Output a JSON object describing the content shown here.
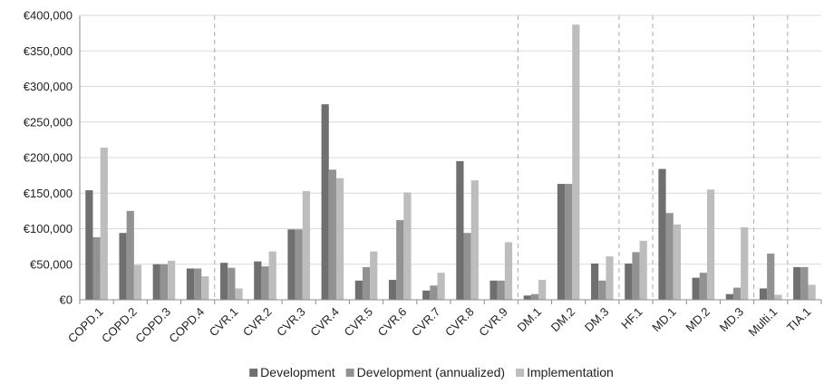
{
  "chart_data": {
    "type": "bar",
    "title": "",
    "xlabel": "",
    "ylabel": "",
    "ylim": [
      0,
      400000
    ],
    "y_ticks": [
      0,
      50000,
      100000,
      150000,
      200000,
      250000,
      300000,
      350000,
      400000
    ],
    "y_tick_labels": [
      "€0",
      "€50,000",
      "€100,000",
      "€150,000",
      "€200,000",
      "€250,000",
      "€300,000",
      "€350,000",
      "€400,000"
    ],
    "categories": [
      "COPD.1",
      "COPD.2",
      "COPD.3",
      "COPD.4",
      "CVR.1",
      "CVR.2",
      "CVR.3",
      "CVR.4",
      "CVR.5",
      "CVR.6",
      "CVR.7",
      "CVR.8",
      "CVR.9",
      "DM.1",
      "DM.2",
      "DM.3",
      "HF.1",
      "MD.1",
      "MD.2",
      "MD.3",
      "Multi.1",
      "TIA.1"
    ],
    "series": [
      {
        "name": "Development",
        "color": "#6f6f6f",
        "values": [
          154000,
          94000,
          50000,
          44000,
          52000,
          54000,
          99000,
          275000,
          27000,
          28000,
          13000,
          195000,
          27000,
          6000,
          163000,
          51000,
          51000,
          184000,
          31000,
          8000,
          16000,
          46000
        ]
      },
      {
        "name": "Development (annualized)",
        "color": "#929292",
        "values": [
          88000,
          125000,
          50000,
          44000,
          45000,
          47000,
          99000,
          183000,
          46000,
          112000,
          20000,
          94000,
          27000,
          8000,
          163000,
          27000,
          67000,
          122000,
          38000,
          17000,
          65000,
          46000
        ]
      },
      {
        "name": "Implementation",
        "color": "#bdbdbd",
        "values": [
          214000,
          49000,
          55000,
          33000,
          16000,
          68000,
          153000,
          171000,
          68000,
          151000,
          38000,
          168000,
          81000,
          28000,
          387000,
          61000,
          83000,
          106000,
          155000,
          102000,
          7000,
          21000
        ]
      }
    ],
    "group_separators_after": [
      "COPD.4",
      "CVR.9",
      "DM.3",
      "HF.1",
      "MD.3",
      "Multi.1"
    ],
    "grid": true,
    "legend_position": "bottom"
  }
}
